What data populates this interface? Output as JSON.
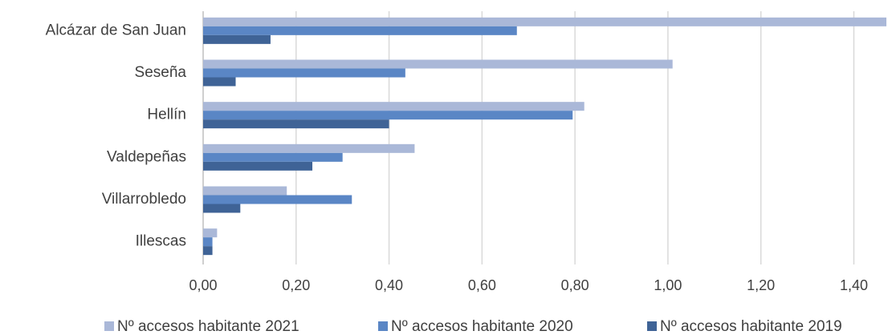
{
  "chart_data": {
    "type": "bar",
    "orientation": "horizontal",
    "categories": [
      "Alcázar de San Juan",
      "Seseña",
      "Hellín",
      "Valdepeñas",
      "Villarrobledo",
      "Illescas"
    ],
    "series": [
      {
        "name": "Nº accesos habitante 2021",
        "color": "#aab8d8",
        "values": [
          1.47,
          1.01,
          0.82,
          0.455,
          0.18,
          0.03
        ]
      },
      {
        "name": "Nº accesos habitante 2020",
        "color": "#5a86c5",
        "values": [
          0.675,
          0.435,
          0.795,
          0.3,
          0.32,
          0.02
        ]
      },
      {
        "name": "Nº accesos habitante 2019",
        "color": "#3f6396",
        "values": [
          0.145,
          0.07,
          0.4,
          0.235,
          0.08,
          0.02
        ]
      }
    ],
    "xlim": [
      0,
      1.47
    ],
    "xticks": [
      0,
      0.2,
      0.4,
      0.6,
      0.8,
      1.0,
      1.2,
      1.4
    ],
    "xtick_labels": [
      "0,00",
      "0,20",
      "0,40",
      "0,60",
      "0,80",
      "1,00",
      "1,20",
      "1,40"
    ],
    "grid": "vertical",
    "legend": "bottom"
  }
}
